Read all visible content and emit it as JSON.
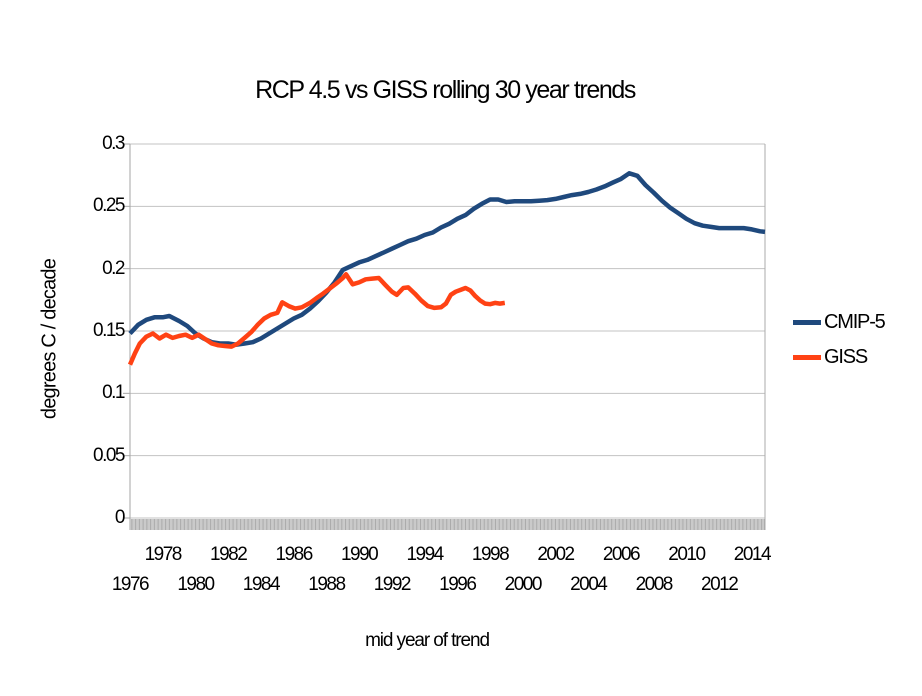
{
  "chart_data": {
    "type": "line",
    "title": "RCP 4.5 vs GISS rolling 30 year trends",
    "xlabel": "mid year of trend",
    "ylabel": "degrees C / decade",
    "xlim": [
      1976,
      2014.8
    ],
    "ylim": [
      0,
      0.3
    ],
    "grid": "horizontal",
    "legend_position": "right",
    "x_minor_ticks_per_year": 12,
    "y_ticks": {
      "values": [
        0.3,
        0.25,
        0.2,
        0.15,
        0.1,
        0.05,
        0
      ],
      "labels": [
        "0.3",
        "0.25",
        "0.2",
        "0.15",
        "0.1",
        "0.05",
        "0"
      ]
    },
    "x_ticks": {
      "years": [
        1976,
        1978,
        1980,
        1982,
        1984,
        1986,
        1988,
        1990,
        1992,
        1994,
        1996,
        1998,
        2000,
        2002,
        2004,
        2006,
        2008,
        2010,
        2012,
        2014
      ],
      "row_upper": [
        "1978",
        "1982",
        "1986",
        "1990",
        "1994",
        "1998",
        "2002",
        "2006",
        "2010",
        "2014"
      ],
      "row_lower": [
        "1976",
        "1980",
        "1984",
        "1988",
        "1992",
        "1996",
        "2000",
        "2004",
        "2008",
        "2012"
      ]
    },
    "colors": {
      "cmip5": "#1F497D",
      "giss": "#FF4214",
      "gridline": "#C3C3C3",
      "axis": "#A6A6A6",
      "minor_tick": "#ABABAB"
    },
    "series": [
      {
        "name": "CMIP-5",
        "color": "#1F497D",
        "x": [
          1976.0,
          1976.5,
          1977.0,
          1977.5,
          1978.0,
          1978.4,
          1979.0,
          1979.5,
          1980.0,
          1980.5,
          1981.0,
          1981.5,
          1982.0,
          1982.5,
          1983.0,
          1983.5,
          1984.0,
          1984.5,
          1985.0,
          1985.5,
          1986.0,
          1986.5,
          1987.0,
          1987.5,
          1988.0,
          1988.5,
          1989.0,
          1989.5,
          1990.0,
          1990.5,
          1991.0,
          1991.5,
          1992.0,
          1992.5,
          1993.0,
          1993.5,
          1994.0,
          1994.5,
          1995.0,
          1995.5,
          1996.0,
          1996.5,
          1997.0,
          1997.5,
          1998.0,
          1998.5,
          1999.0,
          1999.5,
          2000.0,
          2000.5,
          2001.0,
          2001.5,
          2002.0,
          2002.5,
          2003.0,
          2003.5,
          2004.0,
          2004.5,
          2005.0,
          2005.5,
          2006.0,
          2006.5,
          2007.0,
          2007.5,
          2008.0,
          2008.5,
          2009.0,
          2009.5,
          2010.0,
          2010.5,
          2011.0,
          2011.5,
          2012.0,
          2012.5,
          2013.0,
          2013.5,
          2014.0,
          2014.5,
          2014.8
        ],
        "y": [
          0.148,
          0.155,
          0.159,
          0.161,
          0.161,
          0.162,
          0.158,
          0.154,
          0.148,
          0.144,
          0.141,
          0.14,
          0.14,
          0.139,
          0.14,
          0.141,
          0.144,
          0.148,
          0.152,
          0.156,
          0.16,
          0.163,
          0.168,
          0.174,
          0.181,
          0.189,
          0.199,
          0.202,
          0.205,
          0.207,
          0.21,
          0.213,
          0.216,
          0.219,
          0.222,
          0.224,
          0.227,
          0.229,
          0.233,
          0.236,
          0.24,
          0.243,
          0.248,
          0.252,
          0.2555,
          0.2555,
          0.2535,
          0.254,
          0.254,
          0.254,
          0.2545,
          0.255,
          0.256,
          0.2575,
          0.259,
          0.26,
          0.2615,
          0.2635,
          0.266,
          0.269,
          0.272,
          0.2765,
          0.2745,
          0.267,
          0.261,
          0.2545,
          0.249,
          0.2445,
          0.24,
          0.2365,
          0.2345,
          0.2335,
          0.2325,
          0.2325,
          0.2325,
          0.2325,
          0.2315,
          0.23,
          0.2295
        ]
      },
      {
        "name": "GISS",
        "color": "#FF4214",
        "x": [
          1976.0,
          1976.3,
          1976.6,
          1977.0,
          1977.4,
          1977.8,
          1978.2,
          1978.6,
          1979.0,
          1979.4,
          1979.8,
          1980.2,
          1980.6,
          1981.0,
          1981.4,
          1981.8,
          1982.2,
          1982.6,
          1983.0,
          1983.4,
          1983.8,
          1984.2,
          1984.6,
          1985.0,
          1985.3,
          1985.7,
          1986.1,
          1986.5,
          1987.0,
          1987.4,
          1987.8,
          1988.2,
          1988.6,
          1989.0,
          1989.2,
          1989.6,
          1990.0,
          1990.4,
          1990.8,
          1991.2,
          1991.6,
          1992.0,
          1992.3,
          1992.7,
          1993.0,
          1993.4,
          1993.8,
          1994.2,
          1994.6,
          1995.0,
          1995.3,
          1995.6,
          1995.9,
          1996.2,
          1996.5,
          1996.8,
          1997.1,
          1997.4,
          1997.7,
          1998.0,
          1998.3,
          1998.6,
          1998.9
        ],
        "y": [
          0.123,
          0.132,
          0.14,
          0.1455,
          0.148,
          0.144,
          0.147,
          0.1445,
          0.146,
          0.147,
          0.1445,
          0.147,
          0.1435,
          0.14,
          0.1385,
          0.138,
          0.1375,
          0.14,
          0.1445,
          0.149,
          0.155,
          0.16,
          0.163,
          0.1645,
          0.173,
          0.17,
          0.168,
          0.169,
          0.1725,
          0.1765,
          0.18,
          0.184,
          0.188,
          0.1925,
          0.1955,
          0.1875,
          0.189,
          0.1915,
          0.192,
          0.1925,
          0.187,
          0.1815,
          0.179,
          0.1845,
          0.185,
          0.18,
          0.1745,
          0.17,
          0.1685,
          0.169,
          0.172,
          0.179,
          0.1815,
          0.183,
          0.1845,
          0.1825,
          0.178,
          0.1745,
          0.172,
          0.1715,
          0.1725,
          0.172,
          0.1725
        ]
      }
    ]
  }
}
